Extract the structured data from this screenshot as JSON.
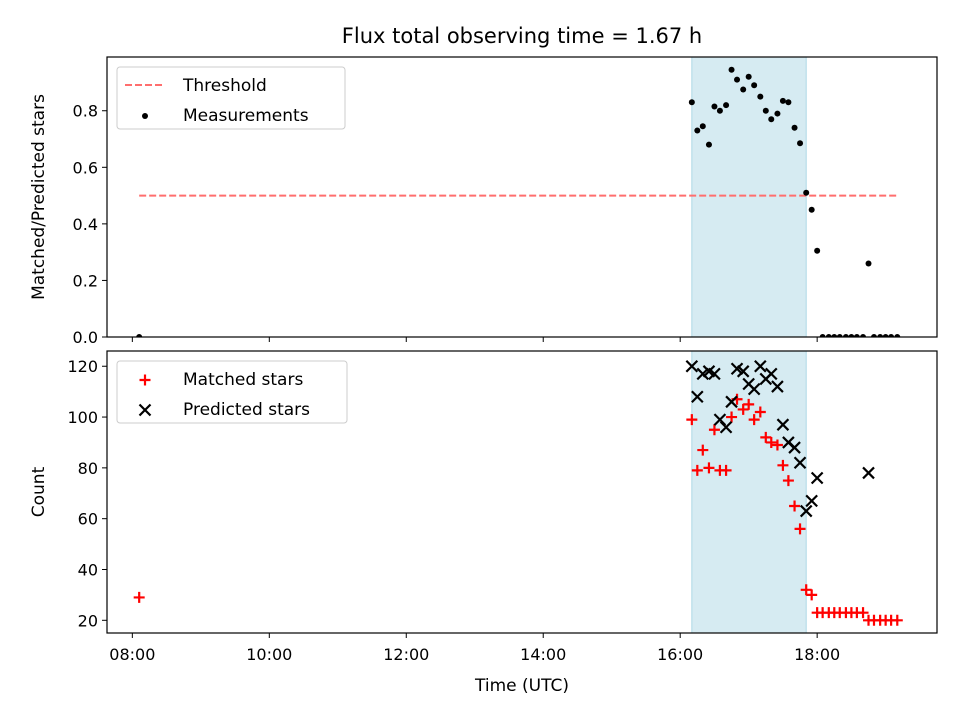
{
  "figure": {
    "title": "Flux total observing time = 1.67 h"
  },
  "colors": {
    "threshold": "#ff6e6e",
    "measurement": "#000000",
    "matched": "#ff0000",
    "predicted": "#000000",
    "span": "#add8e6"
  },
  "chart_data": [
    {
      "type": "scatter",
      "ylabel": "Matched/Predicted stars",
      "ylim": [
        0,
        0.99
      ],
      "yticks": [
        0,
        0.2,
        0.4,
        0.6,
        0.8
      ],
      "ytick_labels": [
        "0.0",
        "0.2",
        "0.4",
        "0.6",
        "0.8"
      ],
      "xlim_hours": [
        7.63,
        19.75
      ],
      "highlight_span_hours": [
        16.17,
        17.84
      ],
      "legend": {
        "position": "upper-left",
        "entries": [
          "Threshold",
          "Measurements"
        ]
      },
      "threshold": {
        "name": "Threshold",
        "value": 0.5,
        "x_hours": [
          8.1,
          19.17
        ]
      },
      "series": [
        {
          "name": "Measurements",
          "marker": "dot",
          "x_hours": [
            8.1,
            16.17,
            16.25,
            16.33,
            16.42,
            16.5,
            16.58,
            16.67,
            16.75,
            16.83,
            16.92,
            17.0,
            17.08,
            17.17,
            17.25,
            17.33,
            17.42,
            17.5,
            17.58,
            17.67,
            17.75,
            17.84,
            17.92,
            18.0,
            18.08,
            18.17,
            18.25,
            18.33,
            18.42,
            18.5,
            18.58,
            18.67,
            18.75,
            18.83,
            18.92,
            19.0,
            19.08,
            19.17
          ],
          "y": [
            0.0,
            0.83,
            0.73,
            0.745,
            0.68,
            0.815,
            0.8,
            0.82,
            0.945,
            0.91,
            0.875,
            0.92,
            0.89,
            0.85,
            0.8,
            0.77,
            0.79,
            0.835,
            0.83,
            0.74,
            0.685,
            0.51,
            0.45,
            0.305,
            0.0,
            0.0,
            0.0,
            0.0,
            0.0,
            0.0,
            0.0,
            0.0,
            0.26,
            0.0,
            0.0,
            0.0,
            0.0,
            0.0
          ]
        }
      ]
    },
    {
      "type": "scatter",
      "xlabel": "Time (UTC)",
      "ylabel": "Count",
      "ylim": [
        15,
        126
      ],
      "yticks": [
        20,
        40,
        60,
        80,
        100,
        120
      ],
      "ytick_labels": [
        "20",
        "40",
        "60",
        "80",
        "100",
        "120"
      ],
      "xlim_hours": [
        7.63,
        19.75
      ],
      "xticks_hours": [
        8,
        10,
        12,
        14,
        16,
        18
      ],
      "xtick_labels": [
        "08:00",
        "10:00",
        "12:00",
        "14:00",
        "16:00",
        "18:00"
      ],
      "highlight_span_hours": [
        16.17,
        17.84
      ],
      "legend": {
        "position": "upper-left",
        "entries": [
          "Matched stars",
          "Predicted stars"
        ]
      },
      "series": [
        {
          "name": "Matched stars",
          "marker": "plus",
          "x_hours": [
            8.1,
            16.17,
            16.25,
            16.33,
            16.42,
            16.5,
            16.58,
            16.67,
            16.75,
            16.83,
            16.92,
            17.0,
            17.08,
            17.17,
            17.25,
            17.33,
            17.42,
            17.5,
            17.58,
            17.67,
            17.75,
            17.84,
            17.92,
            18.0,
            18.08,
            18.17,
            18.25,
            18.33,
            18.42,
            18.5,
            18.58,
            18.67,
            18.75,
            18.83,
            18.92,
            19.0,
            19.08,
            19.17
          ],
          "y": [
            29,
            99,
            79,
            87,
            80,
            95,
            79,
            79,
            100,
            107,
            103,
            105,
            99,
            102,
            92,
            90,
            89,
            81,
            75,
            65,
            56,
            32,
            30,
            23,
            23,
            23,
            23,
            23,
            23,
            23,
            23,
            23,
            20,
            20,
            20,
            20,
            20,
            20
          ]
        },
        {
          "name": "Predicted stars",
          "marker": "x",
          "x_hours": [
            16.17,
            16.25,
            16.33,
            16.42,
            16.5,
            16.58,
            16.67,
            16.75,
            16.83,
            16.92,
            17.0,
            17.08,
            17.17,
            17.25,
            17.33,
            17.42,
            17.5,
            17.58,
            17.67,
            17.75,
            17.84,
            17.92,
            18.0,
            18.75
          ],
          "y": [
            120,
            108,
            117,
            118,
            117,
            99,
            96,
            106,
            119,
            118,
            113,
            111,
            120,
            115,
            117,
            112,
            97,
            90,
            88,
            82,
            63,
            67,
            76,
            78
          ]
        }
      ]
    }
  ]
}
